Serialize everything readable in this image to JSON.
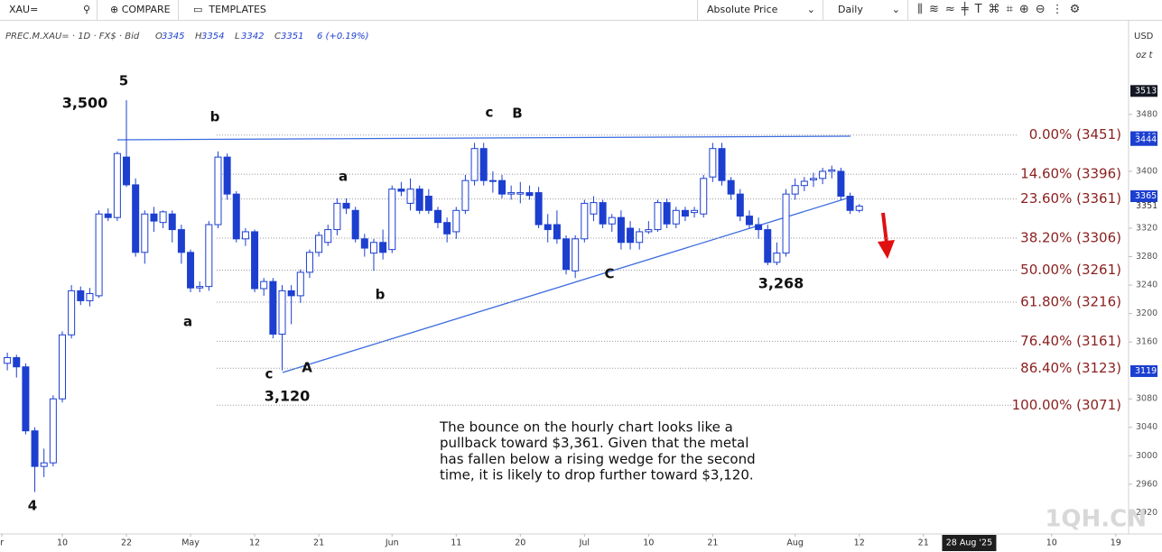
{
  "toolbar": {
    "symbol": "XAU=",
    "compare": "COMPARE",
    "templates": "TEMPLATES",
    "price_mode": "Absolute Price",
    "interval": "Daily"
  },
  "chart_data": {
    "type": "candlestick",
    "header": {
      "symbol": "PREC.M.XAU= · 1D · FX$ · Bid",
      "ohlc": [
        {
          "prefix": "O",
          "value": 3345
        },
        {
          "prefix": "H",
          "value": 3354
        },
        {
          "prefix": "L",
          "value": 3342
        },
        {
          "prefix": "C",
          "value": 3351
        }
      ],
      "change": "6 (+0.19%)"
    },
    "currency": "USD",
    "unit": "oz t",
    "up_color": "#ffffff",
    "down_color": "#1c3fd0",
    "line_color": "#1c3fd0",
    "xlim": [
      -0.8,
      122.4
    ],
    "xticks": [
      {
        "value": -0.6,
        "label": "r"
      },
      {
        "value": 6,
        "label": "10"
      },
      {
        "value": 13,
        "label": "22"
      },
      {
        "value": 20,
        "label": "May"
      },
      {
        "value": 27,
        "label": "12"
      },
      {
        "value": 34,
        "label": "21"
      },
      {
        "value": 42,
        "label": "Jun"
      },
      {
        "value": 49,
        "label": "11"
      },
      {
        "value": 56,
        "label": "20"
      },
      {
        "value": 63,
        "label": "Jul"
      },
      {
        "value": 70,
        "label": "10"
      },
      {
        "value": 77,
        "label": "21"
      },
      {
        "value": 86,
        "label": "Aug"
      },
      {
        "value": 93,
        "label": "12"
      },
      {
        "value": 100,
        "label": "21"
      },
      {
        "value": 114,
        "label": "10"
      },
      {
        "value": 121,
        "label": "19"
      }
    ],
    "crosshair_date": {
      "value": 105,
      "label": "28 Aug '25"
    },
    "ylim": [
      2890,
      3613
    ],
    "yticks": [
      3480,
      3400,
      3320,
      3280,
      3240,
      3200,
      3160,
      3080,
      3040,
      3000,
      2960,
      2920
    ],
    "price_tags": [
      {
        "value": 3513,
        "color": "#131722"
      },
      {
        "value": 3448,
        "color": "#1c3fd0"
      },
      {
        "value": 3444,
        "color": "#1c3fd0"
      },
      {
        "value": 3365,
        "color": "#1c3fd0"
      },
      {
        "value": 3119,
        "color": "#1c3fd0"
      }
    ],
    "last_price": 3351,
    "values": [
      [
        3130,
        3145,
        3120,
        3138
      ],
      [
        3138,
        3142,
        3110,
        3125
      ],
      [
        3125,
        3130,
        3030,
        3035
      ],
      [
        3035,
        3040,
        2949,
        2985
      ],
      [
        2985,
        3010,
        2970,
        2990
      ],
      [
        2990,
        3085,
        2985,
        3080
      ],
      [
        3080,
        3175,
        3075,
        3170
      ],
      [
        3170,
        3240,
        3165,
        3232
      ],
      [
        3232,
        3238,
        3212,
        3218
      ],
      [
        3218,
        3236,
        3210,
        3228
      ],
      [
        3225,
        3345,
        3222,
        3340
      ],
      [
        3340,
        3348,
        3330,
        3335
      ],
      [
        3335,
        3428,
        3330,
        3425
      ],
      [
        3420,
        3500,
        3378,
        3381
      ],
      [
        3381,
        3390,
        3280,
        3286
      ],
      [
        3286,
        3345,
        3270,
        3340
      ],
      [
        3340,
        3350,
        3315,
        3330
      ],
      [
        3328,
        3345,
        3320,
        3343
      ],
      [
        3340,
        3345,
        3300,
        3318
      ],
      [
        3318,
        3325,
        3270,
        3286
      ],
      [
        3286,
        3290,
        3230,
        3236
      ],
      [
        3236,
        3245,
        3230,
        3238
      ],
      [
        3238,
        3330,
        3232,
        3325
      ],
      [
        3325,
        3428,
        3320,
        3420
      ],
      [
        3420,
        3425,
        3360,
        3368
      ],
      [
        3368,
        3372,
        3300,
        3305
      ],
      [
        3305,
        3320,
        3295,
        3315
      ],
      [
        3315,
        3318,
        3230,
        3235
      ],
      [
        3235,
        3250,
        3225,
        3245
      ],
      [
        3245,
        3250,
        3165,
        3171
      ],
      [
        3171,
        3240,
        3120,
        3232
      ],
      [
        3232,
        3240,
        3185,
        3225
      ],
      [
        3225,
        3262,
        3215,
        3258
      ],
      [
        3258,
        3290,
        3250,
        3286
      ],
      [
        3286,
        3315,
        3280,
        3310
      ],
      [
        3300,
        3325,
        3295,
        3318
      ],
      [
        3318,
        3362,
        3310,
        3355
      ],
      [
        3355,
        3362,
        3340,
        3348
      ],
      [
        3345,
        3350,
        3300,
        3305
      ],
      [
        3305,
        3312,
        3280,
        3292
      ],
      [
        3285,
        3305,
        3260,
        3300
      ],
      [
        3300,
        3318,
        3276,
        3286
      ],
      [
        3290,
        3380,
        3285,
        3375
      ],
      [
        3375,
        3385,
        3365,
        3372
      ],
      [
        3355,
        3390,
        3345,
        3375
      ],
      [
        3375,
        3380,
        3340,
        3345
      ],
      [
        3365,
        3375,
        3340,
        3345
      ],
      [
        3345,
        3350,
        3320,
        3328
      ],
      [
        3328,
        3335,
        3300,
        3312
      ],
      [
        3315,
        3350,
        3305,
        3345
      ],
      [
        3345,
        3395,
        3340,
        3387
      ],
      [
        3387,
        3440,
        3380,
        3432
      ],
      [
        3432,
        3440,
        3380,
        3387
      ],
      [
        3387,
        3400,
        3370,
        3387
      ],
      [
        3387,
        3395,
        3362,
        3368
      ],
      [
        3368,
        3380,
        3360,
        3370
      ],
      [
        3368,
        3385,
        3355,
        3370
      ],
      [
        3370,
        3380,
        3360,
        3366
      ],
      [
        3370,
        3378,
        3320,
        3325
      ],
      [
        3325,
        3340,
        3300,
        3318
      ],
      [
        3325,
        3345,
        3298,
        3305
      ],
      [
        3305,
        3310,
        3255,
        3262
      ],
      [
        3260,
        3310,
        3250,
        3305
      ],
      [
        3305,
        3360,
        3300,
        3355
      ],
      [
        3340,
        3365,
        3330,
        3356
      ],
      [
        3356,
        3360,
        3320,
        3326
      ],
      [
        3326,
        3340,
        3315,
        3335
      ],
      [
        3335,
        3345,
        3290,
        3300
      ],
      [
        3320,
        3330,
        3290,
        3300
      ],
      [
        3300,
        3320,
        3290,
        3315
      ],
      [
        3315,
        3330,
        3312,
        3318
      ],
      [
        3318,
        3360,
        3315,
        3356
      ],
      [
        3356,
        3362,
        3320,
        3326
      ],
      [
        3326,
        3350,
        3320,
        3345
      ],
      [
        3345,
        3350,
        3330,
        3337
      ],
      [
        3342,
        3350,
        3335,
        3345
      ],
      [
        3340,
        3395,
        3335,
        3390
      ],
      [
        3392,
        3440,
        3385,
        3432
      ],
      [
        3432,
        3440,
        3380,
        3387
      ],
      [
        3387,
        3392,
        3360,
        3368
      ],
      [
        3368,
        3375,
        3330,
        3337
      ],
      [
        3337,
        3345,
        3320,
        3325
      ],
      [
        3325,
        3335,
        3305,
        3318
      ],
      [
        3318,
        3325,
        3268,
        3272
      ],
      [
        3272,
        3300,
        3268,
        3285
      ],
      [
        3285,
        3375,
        3280,
        3368
      ],
      [
        3368,
        3390,
        3360,
        3380
      ],
      [
        3380,
        3392,
        3372,
        3386
      ],
      [
        3388,
        3398,
        3378,
        3390
      ],
      [
        3390,
        3405,
        3382,
        3400
      ],
      [
        3400,
        3408,
        3390,
        3402
      ],
      [
        3400,
        3405,
        3360,
        3365
      ],
      [
        3365,
        3370,
        3340,
        3345
      ],
      [
        3345,
        3354,
        3342,
        3351
      ]
    ],
    "fib_color": "#8b1f1f",
    "fib_levels": [
      {
        "label": "0.00% (3451)",
        "value": 3451
      },
      {
        "label": "14.60% (3396)",
        "value": 3396
      },
      {
        "label": "23.60% (3361)",
        "value": 3361
      },
      {
        "label": "38.20% (3306)",
        "value": 3306
      },
      {
        "label": "50.00% (3261)",
        "value": 3261
      },
      {
        "label": "61.80% (3216)",
        "value": 3216
      },
      {
        "label": "76.40% (3161)",
        "value": 3161
      },
      {
        "label": "86.40% (3123)",
        "value": 3123
      },
      {
        "label": "100.00% (3071)",
        "value": 3071
      }
    ],
    "annotations": [
      "5",
      "3,500",
      "b",
      "c",
      "B",
      "a",
      "a",
      "b",
      "c",
      "A",
      "3,120",
      "C",
      "3,268",
      "4"
    ],
    "commentary": [
      "The bounce on the hourly chart looks like a",
      "pullback toward $3,361. Given that the metal",
      "has fallen below a rising wedge for the second",
      "time, it is likely to drop further toward $3,120."
    ],
    "watermark": "1QH.CN"
  }
}
